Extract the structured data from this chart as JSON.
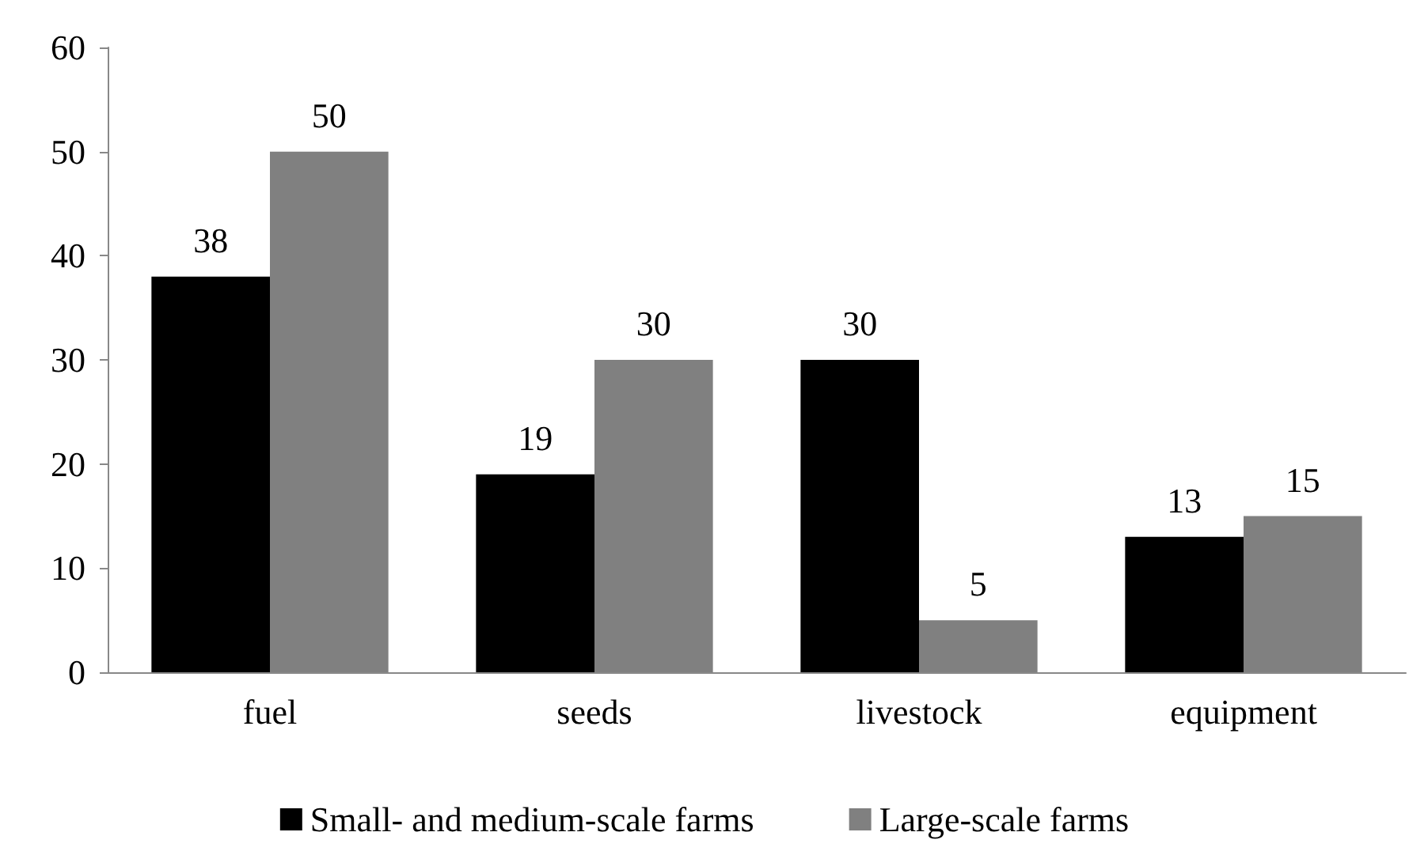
{
  "chart_data": {
    "type": "bar",
    "categories": [
      "fuel",
      "seeds",
      "livestock",
      "equipment"
    ],
    "series": [
      {
        "name": "Small- and medium-scale farms",
        "color": "#000000",
        "values": [
          38,
          19,
          30,
          13
        ]
      },
      {
        "name": "Large-scale farms",
        "color": "#808080",
        "values": [
          50,
          30,
          5,
          15
        ]
      }
    ],
    "ylim": [
      0,
      60
    ],
    "yticks": [
      0,
      10,
      20,
      30,
      40,
      50,
      60
    ],
    "grid": false,
    "legend": "bottom",
    "data_labels": true
  }
}
